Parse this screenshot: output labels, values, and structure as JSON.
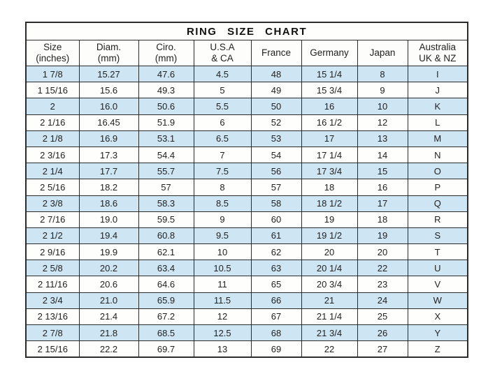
{
  "title_display": "RING SIZE CHART",
  "colors": {
    "row_alternate_blue": "#cee5f4",
    "row_plain": "#fefefd",
    "header_bg": "#fdfdfb",
    "border": "#2b2b2b",
    "text": "#222222",
    "page_bg": "#ffffff"
  },
  "chart_data": {
    "type": "table",
    "title": "RING SIZE CHART",
    "columns": [
      {
        "slug": "size-inches",
        "line1": "Size",
        "line2": "(inches)"
      },
      {
        "slug": "diam-mm",
        "line1": "Diam.",
        "line2": "(mm)"
      },
      {
        "slug": "ciro-mm",
        "line1": "Ciro.",
        "line2": "(mm)"
      },
      {
        "slug": "usa-ca",
        "line1": "U.S.A",
        "line2": "& CA"
      },
      {
        "slug": "france",
        "line1": "France",
        "line2": ""
      },
      {
        "slug": "germany",
        "line1": "Germany",
        "line2": ""
      },
      {
        "slug": "japan",
        "line1": "Japan",
        "line2": ""
      },
      {
        "slug": "australia-uk-nz",
        "line1": "Australia",
        "line2": "UK & NZ"
      }
    ],
    "rows": [
      [
        "1 7/8",
        "15.27",
        "47.6",
        "4.5",
        "48",
        "15 1/4",
        "8",
        "I"
      ],
      [
        "1 15/16",
        "15.6",
        "49.3",
        "5",
        "49",
        "15 3/4",
        "9",
        "J"
      ],
      [
        "2",
        "16.0",
        "50.6",
        "5.5",
        "50",
        "16",
        "10",
        "K"
      ],
      [
        "2 1/16",
        "16.45",
        "51.9",
        "6",
        "52",
        "16 1/2",
        "12",
        "L"
      ],
      [
        "2 1/8",
        "16.9",
        "53.1",
        "6.5",
        "53",
        "17",
        "13",
        "M"
      ],
      [
        "2 3/16",
        "17.3",
        "54.4",
        "7",
        "54",
        "17 1/4",
        "14",
        "N"
      ],
      [
        "2 1/4",
        "17.7",
        "55.7",
        "7.5",
        "56",
        "17 3/4",
        "15",
        "O"
      ],
      [
        "2 5/16",
        "18.2",
        "57",
        "8",
        "57",
        "18",
        "16",
        "P"
      ],
      [
        "2 3/8",
        "18.6",
        "58.3",
        "8.5",
        "58",
        "18 1/2",
        "17",
        "Q"
      ],
      [
        "2 7/16",
        "19.0",
        "59.5",
        "9",
        "60",
        "19",
        "18",
        "R"
      ],
      [
        "2 1/2",
        "19.4",
        "60.8",
        "9.5",
        "61",
        "19 1/2",
        "19",
        "S"
      ],
      [
        "2 9/16",
        "19.9",
        "62.1",
        "10",
        "62",
        "20",
        "20",
        "T"
      ],
      [
        "2 5/8",
        "20.2",
        "63.4",
        "10.5",
        "63",
        "20 1/4",
        "22",
        "U"
      ],
      [
        "2 11/16",
        "20.6",
        "64.6",
        "11",
        "65",
        "20 3/4",
        "23",
        "V"
      ],
      [
        "2 3/4",
        "21.0",
        "65.9",
        "11.5",
        "66",
        "21",
        "24",
        "W"
      ],
      [
        "2 13/16",
        "21.4",
        "67.2",
        "12",
        "67",
        "21 1/4",
        "25",
        "X"
      ],
      [
        "2 7/8",
        "21.8",
        "68.5",
        "12.5",
        "68",
        "21 3/4",
        "26",
        "Y"
      ],
      [
        "2 15/16",
        "22.2",
        "69.7",
        "13",
        "69",
        "22",
        "27",
        "Z"
      ]
    ]
  }
}
